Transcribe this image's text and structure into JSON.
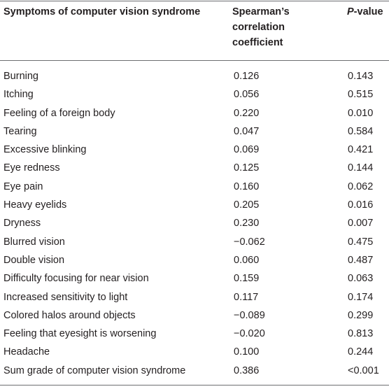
{
  "table": {
    "headers": {
      "symptom": "Symptoms of computer vision syndrome",
      "coefficient": [
        "Spearman’s",
        "correlation",
        "coefficient"
      ],
      "pvalue_italic": "P",
      "pvalue_rest": "-value"
    },
    "rows": [
      {
        "symptom": "Burning",
        "coefficient": "0.126",
        "pvalue": "0.143"
      },
      {
        "symptom": "Itching",
        "coefficient": "0.056",
        "pvalue": "0.515"
      },
      {
        "symptom": "Feeling of a foreign body",
        "coefficient": "0.220",
        "pvalue": "0.010"
      },
      {
        "symptom": "Tearing",
        "coefficient": "0.047",
        "pvalue": "0.584"
      },
      {
        "symptom": "Excessive blinking",
        "coefficient": "0.069",
        "pvalue": "0.421"
      },
      {
        "symptom": "Eye redness",
        "coefficient": "0.125",
        "pvalue": "0.144"
      },
      {
        "symptom": "Eye pain",
        "coefficient": "0.160",
        "pvalue": "0.062"
      },
      {
        "symptom": "Heavy eyelids",
        "coefficient": "0.205",
        "pvalue": "0.016"
      },
      {
        "symptom": "Dryness",
        "coefficient": "0.230",
        "pvalue": "0.007"
      },
      {
        "symptom": "Blurred vision",
        "coefficient": "−0.062",
        "pvalue": "0.475"
      },
      {
        "symptom": "Double vision",
        "coefficient": "0.060",
        "pvalue": "0.487"
      },
      {
        "symptom": "Difficulty focusing for near vision",
        "coefficient": "0.159",
        "pvalue": "0.063"
      },
      {
        "symptom": "Increased sensitivity to light",
        "coefficient": "0.117",
        "pvalue": "0.174"
      },
      {
        "symptom": "Colored halos around objects",
        "coefficient": "−0.089",
        "pvalue": "0.299"
      },
      {
        "symptom": "Feeling that eyesight is worsening",
        "coefficient": "−0.020",
        "pvalue": "0.813"
      },
      {
        "symptom": "Headache",
        "coefficient": "0.100",
        "pvalue": "0.244"
      },
      {
        "symptom": "Sum grade of computer vision syndrome",
        "coefficient": "0.386",
        "pvalue": "<0.001"
      }
    ]
  }
}
